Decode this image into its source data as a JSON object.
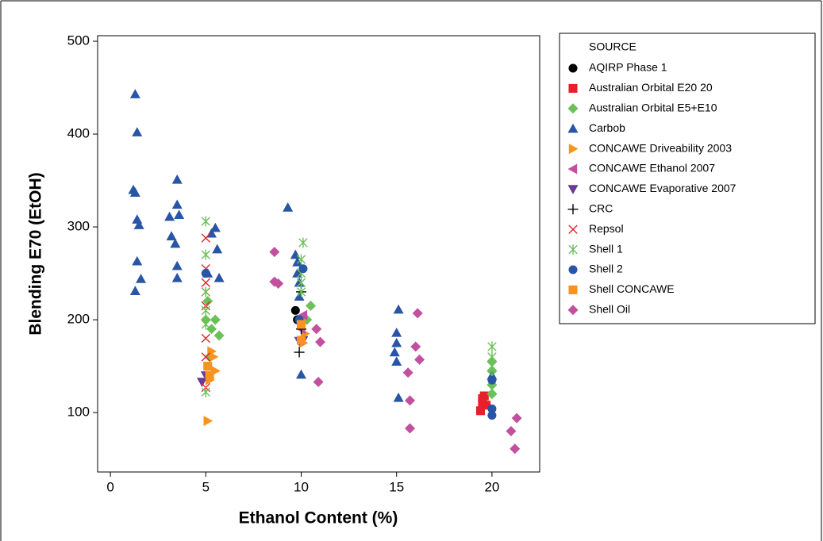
{
  "chart_data": {
    "type": "scatter",
    "x_label": "Ethanol Content (%)",
    "y_label": "Blending E70 (EtOH)",
    "legend_title": "SOURCE",
    "legend_position": "right",
    "grid": false,
    "xlim": [
      -0.67,
      22.5
    ],
    "ylim": [
      36,
      506
    ],
    "xticks": [
      0,
      5,
      10,
      15,
      20
    ],
    "yticks": [
      100,
      200,
      300,
      400,
      500
    ],
    "series": [
      {
        "name": "AQIRP Phase 1",
        "color": "#000000",
        "marker": "circle",
        "x": [
          9.7,
          9.8
        ],
        "values": [
          210,
          200
        ]
      },
      {
        "name": "Australian Orbital E20 20",
        "color": "#e8202a",
        "marker": "square",
        "x": [
          19.4,
          19.5,
          19.6,
          19.7,
          19.5
        ],
        "values": [
          102,
          115,
          118,
          108,
          110
        ]
      },
      {
        "name": "Australian Orbital E5+E10",
        "color": "#6cc05a",
        "marker": "diamond",
        "x": [
          5,
          5.5,
          5.2,
          5.7,
          5.3,
          10.5,
          10.3,
          20,
          20,
          20,
          20,
          5.1
        ],
        "values": [
          200,
          200,
          160,
          183,
          190,
          215,
          200,
          130,
          145,
          155,
          120,
          220
        ]
      },
      {
        "name": "Carbob",
        "color": "#2855a5",
        "marker": "triangle-up",
        "x": [
          1.3,
          1.4,
          1.2,
          1.3,
          1.4,
          1.5,
          1.4,
          1.6,
          1.3,
          3.1,
          3.5,
          3.6,
          3.5,
          3.2,
          3.4,
          3.5,
          3.5,
          5.5,
          5.3,
          5.6,
          5.7,
          5.1,
          9.3,
          9.7,
          9.8,
          9.8,
          9.9,
          9.9,
          10,
          15.1,
          15,
          15,
          14.9,
          15,
          15.1,
          20
        ],
        "values": [
          443,
          402,
          340,
          337,
          308,
          302,
          263,
          244,
          231,
          311,
          324,
          313,
          351,
          290,
          282,
          258,
          245,
          299,
          293,
          276,
          245,
          250,
          321,
          270,
          262,
          250,
          240,
          225,
          141,
          211,
          186,
          175,
          165,
          155,
          116,
          140
        ]
      },
      {
        "name": "CONCAWE Driveability 2003",
        "color": "#f7941d",
        "marker": "triangle-right",
        "x": [
          5.1,
          5.3,
          5.4,
          5.5,
          5.2,
          10.2,
          10.1
        ],
        "values": [
          91,
          166,
          160,
          145,
          135,
          185,
          175
        ]
      },
      {
        "name": "CONCAWE Ethanol 2007",
        "color": "#c2509e",
        "marker": "triangle-left",
        "x": [
          10,
          10.1
        ],
        "values": [
          190,
          205
        ]
      },
      {
        "name": "CONCAWE Evaporative 2007",
        "color": "#6a3a96",
        "marker": "triangle-down",
        "x": [
          4.8,
          9.9,
          10.1,
          5
        ],
        "values": [
          133,
          177,
          178,
          140
        ]
      },
      {
        "name": "CRC",
        "color": "#000000",
        "marker": "plus",
        "x": [
          9.9,
          10,
          10
        ],
        "values": [
          165,
          190,
          230
        ]
      },
      {
        "name": "Repsol",
        "color": "#e8202a",
        "marker": "cross",
        "x": [
          5,
          5,
          5,
          5,
          5,
          5,
          5,
          5
        ],
        "values": [
          288,
          255,
          240,
          230,
          215,
          180,
          160,
          127
        ]
      },
      {
        "name": "Shell 1",
        "color": "#6cc05a",
        "marker": "asterisk",
        "x": [
          5,
          5,
          5,
          5,
          5,
          5,
          10.1,
          10,
          10,
          10,
          10,
          20,
          20,
          20,
          20,
          20
        ],
        "values": [
          306,
          270,
          230,
          210,
          195,
          122,
          283,
          265,
          250,
          240,
          230,
          171,
          160,
          150,
          140,
          125
        ]
      },
      {
        "name": "Shell 2",
        "color": "#2855a5",
        "marker": "circle",
        "x": [
          20,
          20,
          10.1,
          9.9,
          20,
          5
        ],
        "values": [
          104,
          97,
          255,
          200,
          135,
          250
        ]
      },
      {
        "name": "Shell CONCAWE",
        "color": "#f7941d",
        "marker": "square",
        "x": [
          10,
          10,
          5.1,
          5.2
        ],
        "values": [
          195,
          178,
          150,
          140
        ]
      },
      {
        "name": "Shell Oil",
        "color": "#c2509e",
        "marker": "diamond",
        "x": [
          8.6,
          8.6,
          8.8,
          10.8,
          11,
          10.9,
          15.6,
          15.7,
          15.7,
          16.1,
          16,
          16.2,
          21,
          21.3,
          21.2
        ],
        "values": [
          273,
          241,
          239,
          190,
          176,
          133,
          143,
          113,
          83,
          207,
          171,
          157,
          80,
          94,
          61
        ]
      }
    ]
  }
}
